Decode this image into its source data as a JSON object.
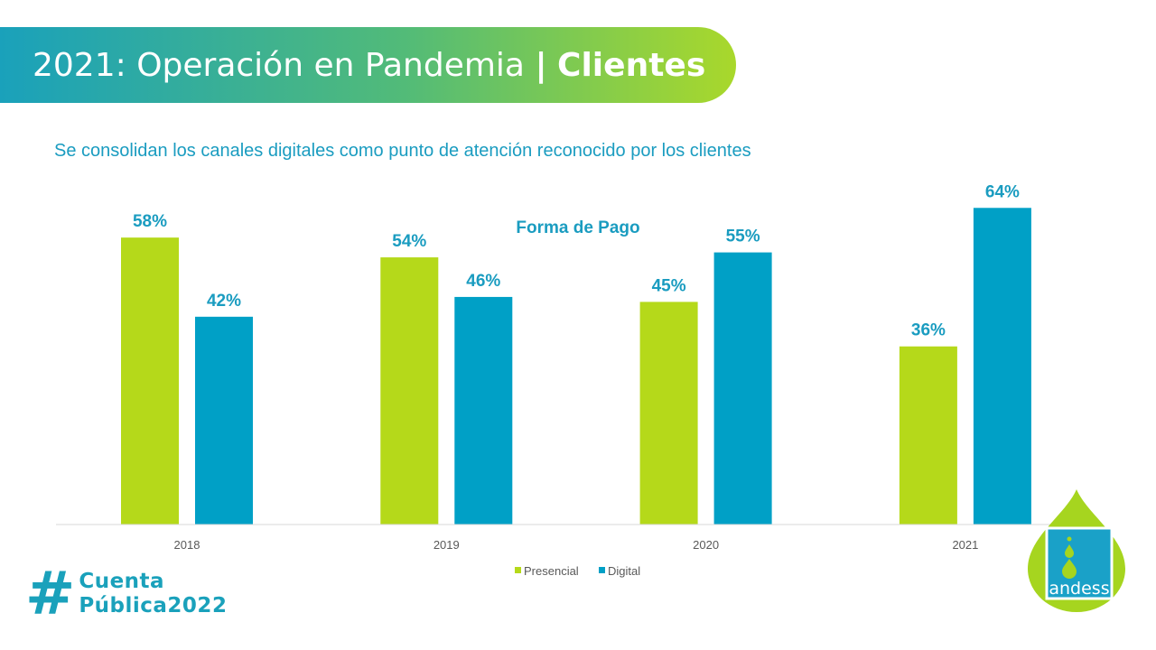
{
  "header": {
    "title_main": "2021: Operación en Pandemia",
    "title_sep": "|",
    "title_bold": "Clientes"
  },
  "subtitle": "Se consolidan los canales digitales como punto de atención reconocido por los clientes",
  "chart_data": {
    "type": "bar",
    "title": "Forma de Pago",
    "categories": [
      "2018",
      "2019",
      "2020",
      "2021"
    ],
    "series": [
      {
        "name": "Presencial",
        "values": [
          58,
          54,
          45,
          36
        ],
        "labels": [
          "58%",
          "54%",
          "45%",
          "36%"
        ],
        "color": "#b5d91a"
      },
      {
        "name": "Digital",
        "values": [
          42,
          46,
          55,
          64
        ],
        "labels": [
          "42%",
          "46%",
          "55%",
          "64%"
        ],
        "color": "#00a0c6"
      }
    ],
    "ylim": [
      0,
      70
    ],
    "grid": false,
    "legend_position": "bottom"
  },
  "footer": {
    "hashtag_sign": "#",
    "hashtag_line1": "Cuenta",
    "hashtag_line2": "Pública2022"
  },
  "logo": {
    "text": "andess",
    "color_green": "#a6d51f",
    "color_blue": "#1aa1c8"
  }
}
